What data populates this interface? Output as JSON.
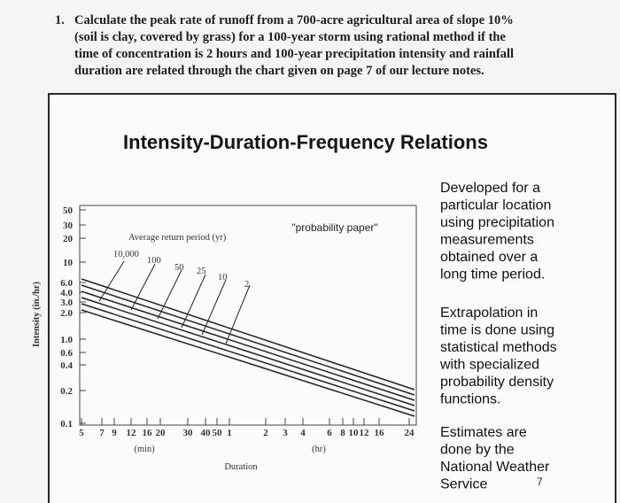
{
  "question": {
    "number": "1.",
    "lines": [
      "Calculate the peak rate of runoff from a 700-acre agricultural area of slope 10%",
      "(soil is clay, covered by grass) for a 100-year storm using rational method if the",
      "time of concentration is 2 hours and 100-year precipitation intensity and rainfall",
      "duration are related through the chart given on page 7 of our lecture notes."
    ]
  },
  "slide": {
    "title": "Intensity-Duration-Frequency Relations",
    "figure": {
      "y_axis_label": "Intensity (in./hr)",
      "y_tick_labels": [
        "50",
        "30",
        "20",
        "10",
        "6.0",
        "4.0",
        "3.0",
        "2.0",
        "1.0",
        "0.6",
        "0.4",
        "0.2",
        "0.1"
      ],
      "x_tick_labels_min": [
        "5",
        "7",
        "9",
        "12",
        "16",
        "20",
        "30",
        "40",
        "50",
        "1"
      ],
      "x_tick_labels_hr": [
        "2",
        "3",
        "4",
        "6",
        "8",
        "10",
        "12",
        "16",
        "24"
      ],
      "x_unit_min": "(min)",
      "x_unit_hr": "(hr)",
      "x_axis_label": "Duration",
      "return_period_label": "Average return period (yr)",
      "return_periods": [
        "10,000",
        "100",
        "50",
        "25",
        "10",
        "2"
      ],
      "note": "\"probability paper\""
    },
    "paragraphs": [
      [
        "Developed for a",
        "particular location",
        "using precipitation",
        "measurements",
        "obtained over a",
        "long time period."
      ],
      [
        "Extrapolation in",
        "time is done using",
        "statistical methods",
        "with specialized",
        "probability density",
        "functions."
      ],
      [
        "Estimates are",
        "done by the",
        "National Weather",
        "Service"
      ]
    ],
    "page_number": "7"
  }
}
